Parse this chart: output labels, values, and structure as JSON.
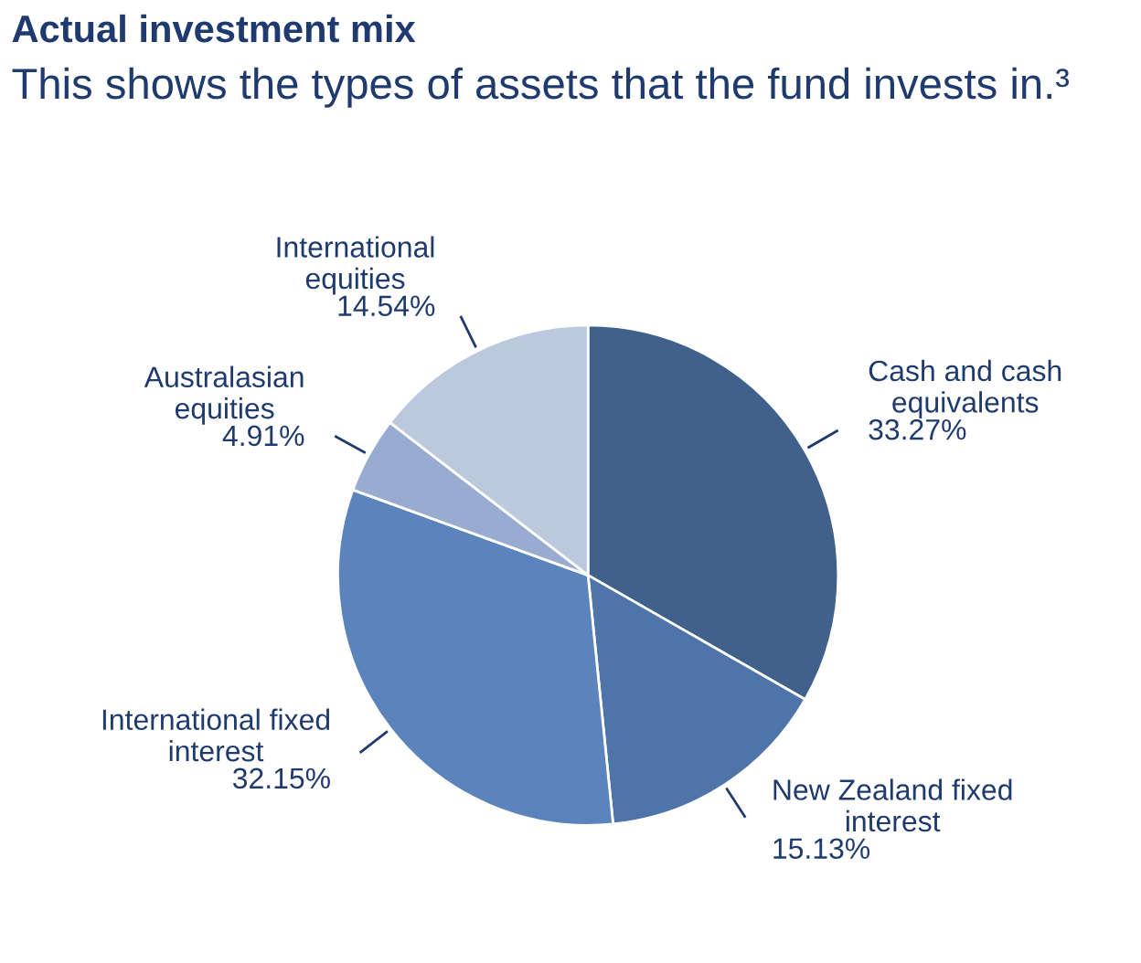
{
  "chart_data": {
    "type": "pie",
    "title": "Actual investment mix",
    "subtitle": "This shows the types of assets that the fund invests in.³",
    "categories": [
      "Cash and cash\nequivalents",
      "New Zealand fixed\ninterest",
      "International fixed\ninterest",
      "Australasian\nequities",
      "International\nequities"
    ],
    "values": [
      33.27,
      15.13,
      32.15,
      4.91,
      14.54
    ],
    "colors": [
      "#40618c",
      "#4e74a9",
      "#5b84bd",
      "#98abd1",
      "#bcc8dd"
    ],
    "value_labels": [
      "33.27%",
      "15.13%",
      "32.15%",
      "4.91%",
      "14.54%"
    ],
    "legend": false
  }
}
